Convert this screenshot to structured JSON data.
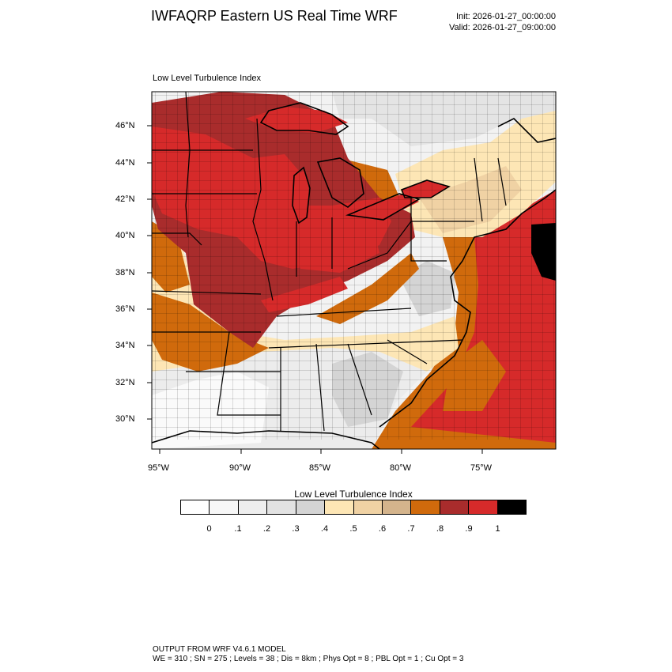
{
  "header": {
    "title": "IWFAQRP Eastern US Real Time WRF",
    "init": "Init: 2026-01-27_00:00:00",
    "valid": "Valid: 2026-01-27_09:00:00"
  },
  "map": {
    "subtitle": "Low Level Turbulence Index",
    "lat_labels": [
      "46°N",
      "44°N",
      "42°N",
      "40°N",
      "38°N",
      "36°N",
      "34°N",
      "32°N",
      "30°N"
    ],
    "lon_labels": [
      "95°W",
      "90°W",
      "85°W",
      "80°W",
      "75°W"
    ],
    "colors": {
      "v0": "#ffffff",
      "v1": "#f7f7f7",
      "v2": "#eeeeee",
      "v3": "#e2e2e2",
      "v4": "#d4d4d4",
      "v5": "#fde6b5",
      "v6": "#f0d2a4",
      "v7": "#d4b48c",
      "v8": "#d06a0c",
      "v9": "#a92c2c",
      "v10": "#d62a2a",
      "v11": "#000000"
    }
  },
  "colorbar": {
    "title": "Low Level Turbulence Index",
    "swatches": [
      "#ffffff",
      "#f7f7f7",
      "#eeeeee",
      "#e2e2e2",
      "#d4d4d4",
      "#fde6b5",
      "#f0d2a4",
      "#d4b48c",
      "#d06a0c",
      "#a92c2c",
      "#d62a2a",
      "#000000"
    ],
    "tick_labels": [
      "0",
      ".1",
      ".2",
      ".3",
      ".4",
      ".5",
      ".6",
      ".7",
      ".8",
      ".9",
      "1"
    ]
  },
  "footer": {
    "line1": "OUTPUT FROM WRF V4.6.1 MODEL",
    "line2": "WE = 310 ; SN = 275 ; Levels = 38 ; Dis = 8km ; Phys Opt = 8 ; PBL Opt = 1 ; Cu Opt = 3"
  }
}
